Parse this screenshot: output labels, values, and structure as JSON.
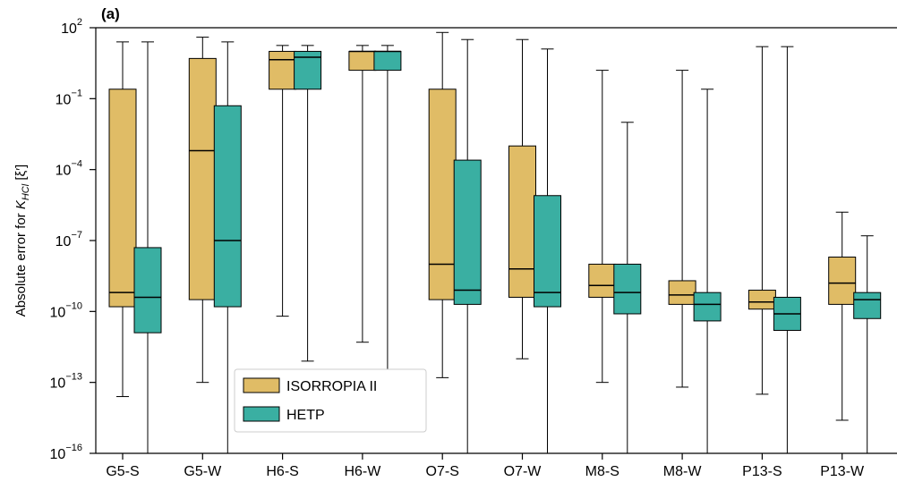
{
  "chart_data": {
    "type": "box",
    "panel_label": "(a)",
    "ylabel": "Absolute error for K_HCl [ξ′]",
    "ylabel_parts": {
      "pre": "Absolute error for ",
      "var": "K",
      "sub": "HCl",
      "post": " [ξ′]"
    },
    "yscale": "log",
    "ylim_exponents": [
      -16,
      2
    ],
    "y_ticks": [
      {
        "exp": 2,
        "label_base": "10",
        "label_exp": "2"
      },
      {
        "exp": -1,
        "label_base": "10",
        "label_exp": "−1"
      },
      {
        "exp": -4,
        "label_base": "10",
        "label_exp": "−4"
      },
      {
        "exp": -7,
        "label_base": "10",
        "label_exp": "−7"
      },
      {
        "exp": -10,
        "label_base": "10",
        "label_exp": "−10"
      },
      {
        "exp": -13,
        "label_base": "10",
        "label_exp": "−13"
      },
      {
        "exp": -16,
        "label_base": "10",
        "label_exp": "−16"
      }
    ],
    "categories": [
      "G5-S",
      "G5-W",
      "H6-S",
      "H6-W",
      "O7-S",
      "O7-W",
      "M8-S",
      "M8-W",
      "P13-S",
      "P13-W"
    ],
    "series": [
      {
        "name": "ISORROPIA II",
        "color": "#e0bc66",
        "boxes": [
          {
            "whislo": -13.6,
            "q1": -9.8,
            "med": -9.2,
            "q3": -0.6,
            "whishi": 1.4
          },
          {
            "whislo": -13.0,
            "q1": -9.5,
            "med": -3.2,
            "q3": 0.7,
            "whishi": 1.6
          },
          {
            "whislo": -10.2,
            "q1": -0.6,
            "med": 0.65,
            "q3": 1.0,
            "whishi": 1.25
          },
          {
            "whislo": -11.3,
            "q1": 0.2,
            "med": 1.0,
            "q3": 1.0,
            "whishi": 1.25
          },
          {
            "whislo": -12.8,
            "q1": -9.5,
            "med": -8.0,
            "q3": -0.6,
            "whishi": 1.8
          },
          {
            "whislo": -12.0,
            "q1": -9.4,
            "med": -8.2,
            "q3": -3.0,
            "whishi": 1.5
          },
          {
            "whislo": -13.0,
            "q1": -9.4,
            "med": -8.9,
            "q3": -8.0,
            "whishi": 0.2
          },
          {
            "whislo": -13.2,
            "q1": -9.7,
            "med": -9.3,
            "q3": -8.7,
            "whishi": 0.2
          },
          {
            "whislo": -13.5,
            "q1": -9.9,
            "med": -9.6,
            "q3": -9.1,
            "whishi": 1.2
          },
          {
            "whislo": -14.6,
            "q1": -9.7,
            "med": -8.8,
            "q3": -7.7,
            "whishi": -5.8
          }
        ]
      },
      {
        "name": "HETP",
        "color": "#3aafa2",
        "boxes": [
          {
            "whislo": -16,
            "q1": -10.9,
            "med": -9.4,
            "q3": -7.3,
            "whishi": 1.4
          },
          {
            "whislo": -16,
            "q1": -9.8,
            "med": -7.0,
            "q3": -1.3,
            "whishi": 1.4
          },
          {
            "whislo": -12.1,
            "q1": -0.6,
            "med": 0.75,
            "q3": 1.0,
            "whishi": 1.25
          },
          {
            "whislo": -12.5,
            "q1": 0.2,
            "med": 1.0,
            "q3": 1.0,
            "whishi": 1.25
          },
          {
            "whislo": -16,
            "q1": -9.7,
            "med": -9.1,
            "q3": -3.6,
            "whishi": 1.5
          },
          {
            "whislo": -16,
            "q1": -9.8,
            "med": -9.2,
            "q3": -5.1,
            "whishi": 1.1
          },
          {
            "whislo": -16,
            "q1": -10.1,
            "med": -9.2,
            "q3": -8.0,
            "whishi": -2.0
          },
          {
            "whislo": -16,
            "q1": -10.4,
            "med": -9.7,
            "q3": -9.2,
            "whishi": -0.6
          },
          {
            "whislo": -16,
            "q1": -10.8,
            "med": -10.1,
            "q3": -9.4,
            "whishi": 1.2
          },
          {
            "whislo": -16,
            "q1": -10.3,
            "med": -9.5,
            "q3": -9.2,
            "whishi": -6.8
          }
        ]
      }
    ],
    "legend": {
      "placement": "lower-left",
      "entries": [
        {
          "label": "ISORROPIA II",
          "color": "#e0bc66"
        },
        {
          "label": "HETP",
          "color": "#3aafa2"
        }
      ]
    },
    "grid": false
  }
}
